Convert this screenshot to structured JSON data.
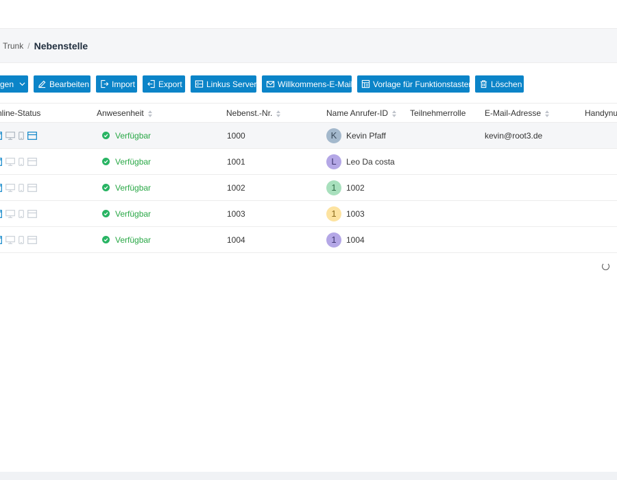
{
  "breadcrumb": {
    "parent": "Trunk",
    "separator": "/",
    "current": "Nebenstelle"
  },
  "toolbar": {
    "dropdown_label": "gen",
    "edit_label": "Bearbeiten",
    "import_label": "Import",
    "export_label": "Export",
    "linkus_label": "Linkus Server",
    "welcome_label": "Willkommens-E-Mail",
    "template_label": "Vorlage für Funktionstasten",
    "delete_label": "Löschen"
  },
  "table": {
    "columns": {
      "online_status": "nline-Status",
      "presence": "Anwesenheit",
      "extension": "Nebenst.-Nr.",
      "caller_id": "Name Anrufer-ID",
      "role": "Teilnehmerrolle",
      "email": "E-Mail-Adresse",
      "mobile": "Handynur"
    },
    "rows": [
      {
        "presence": "Verfügbar",
        "extension": "1000",
        "avatar_letter": "K",
        "avatar_color": "#a3b8cc",
        "avatar_text_color": "#3a4a5a",
        "name": "Kevin Pfaff",
        "role": "",
        "email": "kevin@root3.de",
        "active": true
      },
      {
        "presence": "Verfügbar",
        "extension": "1001",
        "avatar_letter": "L",
        "avatar_color": "#b4a7e6",
        "avatar_text_color": "#3e3570",
        "name": "Leo Da costa",
        "role": "",
        "email": "",
        "active": false
      },
      {
        "presence": "Verfügbar",
        "extension": "1002",
        "avatar_letter": "1",
        "avatar_color": "#a8e0bd",
        "avatar_text_color": "#2f6e47",
        "name": "1002",
        "role": "",
        "email": "",
        "active": false
      },
      {
        "presence": "Verfügbar",
        "extension": "1003",
        "avatar_letter": "1",
        "avatar_color": "#fde3a0",
        "avatar_text_color": "#8a6a1a",
        "name": "1003",
        "role": "",
        "email": "",
        "active": false
      },
      {
        "presence": "Verfügbar",
        "extension": "1004",
        "avatar_letter": "1",
        "avatar_color": "#b4a7e6",
        "avatar_text_color": "#3e3570",
        "name": "1004",
        "role": "",
        "email": "",
        "active": false
      }
    ]
  },
  "colors": {
    "accent": "#0b84c8",
    "available": "#28a745"
  }
}
